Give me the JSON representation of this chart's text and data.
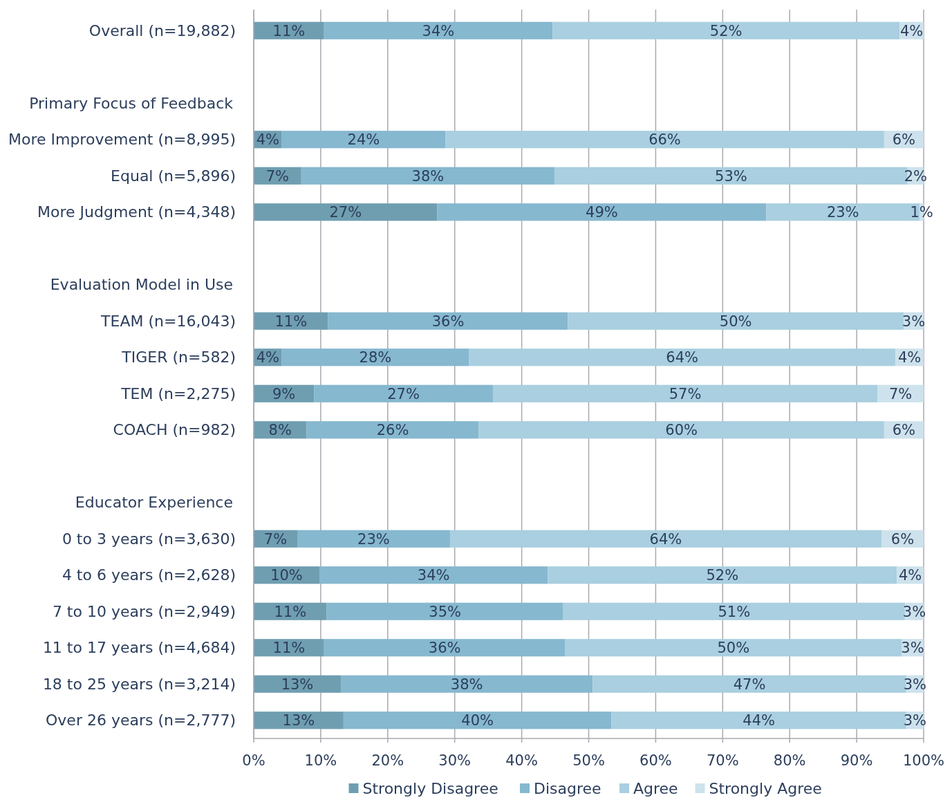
{
  "chart_data": {
    "type": "bar",
    "orientation": "horizontal",
    "stacked": true,
    "grid": "x",
    "legend": "bottom",
    "categories": [
      "Overall (n=19,882)",
      null,
      "Primary Focus of Feedback",
      "More Improvement (n=8,995)",
      "Equal (n=5,896)",
      "More Judgment (n=4,348)",
      null,
      "Evaluation Model in Use",
      "TEAM (n=16,043)",
      "TIGER (n=582)",
      "TEM (n=2,275)",
      "COACH (n=982)",
      null,
      "Educator Experience",
      "0 to 3 years (n=3,630)",
      "4 to 6 years (n=2,628)",
      "7 to 10 years (n=2,949)",
      "11 to 17 years (n=4,684)",
      "18 to 25 years (n=3,214)",
      "Over 26 years (n=2,777)"
    ],
    "xlim": [
      0,
      100
    ],
    "xticks": [
      {
        "value": 0,
        "label": "0%"
      },
      {
        "value": 10,
        "label": "10%"
      },
      {
        "value": 20,
        "label": "20%"
      },
      {
        "value": 30,
        "label": "30%"
      },
      {
        "value": 40,
        "label": "40%"
      },
      {
        "value": 50,
        "label": "50%"
      },
      {
        "value": 60,
        "label": "60%"
      },
      {
        "value": 70,
        "label": "70%"
      },
      {
        "value": 80,
        "label": "80%"
      },
      {
        "value": 90,
        "label": "90%"
      },
      {
        "value": 100,
        "label": "100%"
      }
    ],
    "series": [
      {
        "name": "Strongly Disagree",
        "color": "#6f9eb1",
        "values": [
          10.5,
          null,
          null,
          4.2,
          7.1,
          27.4,
          null,
          null,
          11.1,
          4.2,
          9.0,
          7.9,
          null,
          null,
          6.5,
          9.8,
          10.9,
          10.5,
          13.0,
          13.4
        ],
        "value_labels": [
          "11%",
          null,
          null,
          "4%",
          "7%",
          "27%",
          null,
          null,
          "11%",
          "4%",
          "9%",
          "8%",
          null,
          null,
          "7%",
          "10%",
          "11%",
          "11%",
          "13%",
          "13%"
        ]
      },
      {
        "name": "Disagree",
        "color": "#86b8cf",
        "values": [
          34.1,
          null,
          null,
          24.4,
          37.8,
          49.1,
          null,
          null,
          35.8,
          27.9,
          26.7,
          25.7,
          null,
          null,
          22.8,
          34.1,
          35.3,
          36.0,
          37.6,
          40.0
        ],
        "value_labels": [
          "34%",
          null,
          null,
          "24%",
          "38%",
          "49%",
          null,
          null,
          "36%",
          "28%",
          "27%",
          "26%",
          null,
          null,
          "23%",
          "34%",
          "35%",
          "36%",
          "38%",
          "40%"
        ]
      },
      {
        "name": "Agree",
        "color": "#a9cfe0",
        "values": [
          51.8,
          null,
          null,
          65.5,
          52.7,
          22.9,
          null,
          null,
          50.1,
          63.7,
          57.4,
          60.5,
          null,
          null,
          64.4,
          52.1,
          51.0,
          50.2,
          46.8,
          44.0
        ],
        "value_labels": [
          "52%",
          null,
          null,
          "66%",
          "53%",
          "23%",
          null,
          null,
          "50%",
          "64%",
          "57%",
          "60%",
          null,
          null,
          "64%",
          "52%",
          "51%",
          "50%",
          "47%",
          "44%"
        ]
      },
      {
        "name": "Strongly Agree",
        "color": "#cde2ec",
        "values": [
          3.6,
          null,
          null,
          5.9,
          2.4,
          0.6,
          null,
          null,
          3.0,
          4.2,
          6.9,
          5.9,
          null,
          null,
          6.3,
          4.0,
          2.8,
          3.3,
          2.6,
          2.6
        ],
        "value_labels": [
          "4%",
          null,
          null,
          "6%",
          "2%",
          "1%",
          null,
          null,
          "3%",
          "4%",
          "7%",
          "6%",
          null,
          null,
          "6%",
          "4%",
          "3%",
          "3%",
          "3%",
          "3%"
        ]
      }
    ]
  }
}
